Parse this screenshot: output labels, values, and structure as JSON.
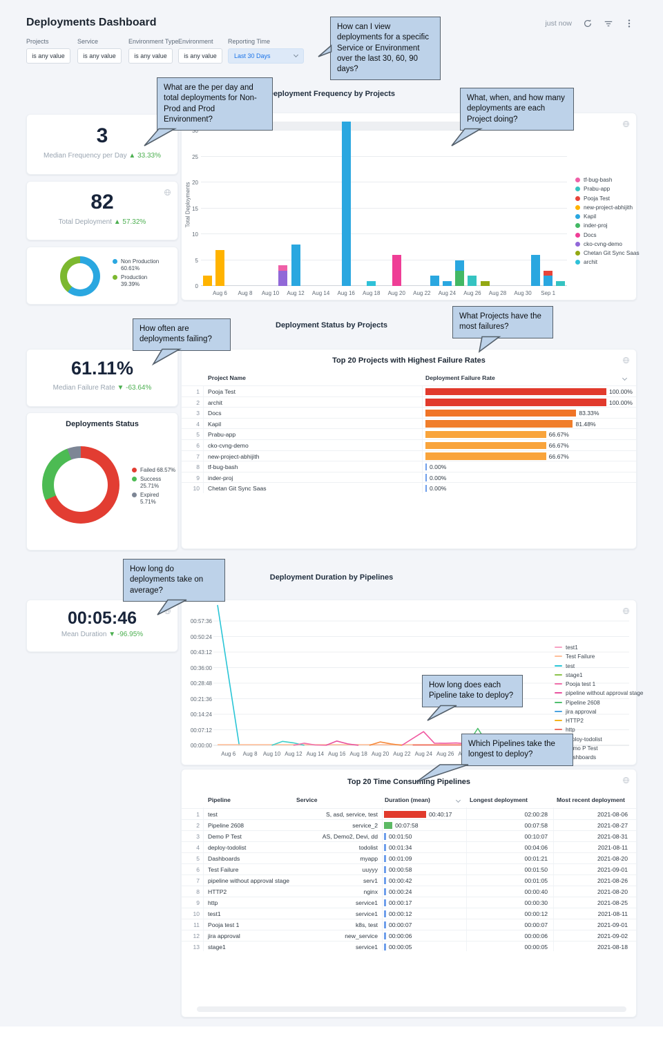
{
  "header": {
    "title": "Deployments Dashboard",
    "updated": "just now"
  },
  "filters": {
    "items": [
      {
        "label": "Projects",
        "value": "is any value"
      },
      {
        "label": "Service",
        "value": "is any value"
      },
      {
        "label": "Environment Type",
        "value": "is any value"
      },
      {
        "label": "Environment",
        "value": "is any value"
      }
    ],
    "reporting": {
      "label": "Reporting Time",
      "value": "Last 30 Days"
    }
  },
  "callouts": [
    {
      "text": "How can I view deployments for a specific Service or Environment over the last 30, 60, 90 days?"
    },
    {
      "text": "What are the per day and total deployments for Non-Prod and Prod Environment?"
    },
    {
      "text": "What, when, and how many deployments are each Project doing?"
    },
    {
      "text": "How often are deployments failing?"
    },
    {
      "text": "What Projects have the most failures?"
    },
    {
      "text": "How long do deployments take on average?"
    },
    {
      "text": "How long does each Pipeline take to deploy?"
    },
    {
      "text": "Which Pipelines take the longest to deploy?"
    }
  ],
  "kpis": {
    "median_frequency": {
      "value": "3",
      "label": "Median Frequency per Day",
      "arrow": "▲",
      "delta": "33.33%"
    },
    "total_deployment": {
      "value": "82",
      "label": "Total Deployment",
      "arrow": "▲",
      "delta": "57.32%"
    },
    "median_failure": {
      "value": "61.11%",
      "label": "Median Failure Rate",
      "arrow": "▼",
      "delta": "-63.64%"
    },
    "mean_duration": {
      "value": "00:05:46",
      "label": "Mean Duration",
      "arrow": "▼",
      "delta": "-96.95%"
    }
  },
  "sections": {
    "frequency": "Deployment Frequency by Projects",
    "status": "Deployment Status by Projects",
    "duration": "Deployment Duration by Pipelines"
  },
  "chart_data": {
    "env_split": {
      "type": "pie",
      "segments": [
        {
          "label": "Non Production",
          "pct": 60.61,
          "color": "#2aa7e0"
        },
        {
          "label": "Production",
          "pct": 39.39,
          "color": "#7cb82f"
        }
      ]
    },
    "frequency_by_projects": {
      "type": "bar",
      "stacked": true,
      "title": "Deployment Frequency by Projects",
      "ylabel": "Total Deployments",
      "ylim": [
        0,
        30
      ],
      "yticks": [
        0,
        5,
        10,
        15,
        20,
        25,
        30
      ],
      "xticks": [
        "Aug 6",
        "Aug 8",
        "Aug 10",
        "Aug 12",
        "Aug 14",
        "Aug 16",
        "Aug 18",
        "Aug 20",
        "Aug 22",
        "Aug 24",
        "Aug 26",
        "Aug 28",
        "Aug 30",
        "Sep 1"
      ],
      "tick_days": [
        1,
        3,
        5,
        7,
        9,
        11,
        13,
        15,
        17,
        19,
        21,
        23,
        25,
        27
      ],
      "legend": [
        {
          "name": "tf-bug-bash",
          "color": "#ef5fa7"
        },
        {
          "name": "Prabu-app",
          "color": "#35c3c1"
        },
        {
          "name": "Pooja Test",
          "color": "#e8443a"
        },
        {
          "name": "new-project-abhijith",
          "color": "#ffb300"
        },
        {
          "name": "Kapil",
          "color": "#2aa7e0"
        },
        {
          "name": "inder-proj",
          "color": "#43b864"
        },
        {
          "name": "Docs",
          "color": "#ef3e96"
        },
        {
          "name": "cko-cvng-demo",
          "color": "#9168d8"
        },
        {
          "name": "Chetan Git Sync Saas",
          "color": "#93a813"
        },
        {
          "name": "archit",
          "color": "#2fc1d8"
        }
      ],
      "bars": [
        {
          "date": "Aug 5",
          "day": 0,
          "segments": [
            {
              "project": "new-project-abhijith",
              "value": 2
            }
          ]
        },
        {
          "date": "Aug 6",
          "day": 1,
          "segments": [
            {
              "project": "new-project-abhijith",
              "value": 7
            }
          ]
        },
        {
          "date": "Aug 11",
          "day": 6,
          "segments": [
            {
              "project": "cko-cvng-demo",
              "value": 3
            },
            {
              "project": "tf-bug-bash",
              "value": 1
            }
          ]
        },
        {
          "date": "Aug 12",
          "day": 7,
          "segments": [
            {
              "project": "Kapil",
              "value": 8
            }
          ]
        },
        {
          "date": "Aug 16",
          "day": 11,
          "segments": [
            {
              "project": "Kapil",
              "value": 32
            }
          ]
        },
        {
          "date": "Aug 18",
          "day": 13,
          "segments": [
            {
              "project": "archit",
              "value": 1
            }
          ]
        },
        {
          "date": "Aug 20",
          "day": 15,
          "segments": [
            {
              "project": "Docs",
              "value": 6
            }
          ]
        },
        {
          "date": "Aug 23",
          "day": 18,
          "segments": [
            {
              "project": "Kapil",
              "value": 2
            }
          ]
        },
        {
          "date": "Aug 24",
          "day": 19,
          "segments": [
            {
              "project": "Kapil",
              "value": 1
            }
          ]
        },
        {
          "date": "Aug 25",
          "day": 20,
          "segments": [
            {
              "project": "inder-proj",
              "value": 3
            },
            {
              "project": "Kapil",
              "value": 2
            }
          ]
        },
        {
          "date": "Aug 26",
          "day": 21,
          "segments": [
            {
              "project": "Prabu-app",
              "value": 2
            }
          ]
        },
        {
          "date": "Aug 27",
          "day": 22,
          "segments": [
            {
              "project": "Chetan Git Sync Saas",
              "value": 1
            }
          ]
        },
        {
          "date": "Aug 31",
          "day": 26,
          "segments": [
            {
              "project": "Kapil",
              "value": 6
            }
          ]
        },
        {
          "date": "Sep 1",
          "day": 27,
          "segments": [
            {
              "project": "Kapil",
              "value": 2
            },
            {
              "project": "Pooja Test",
              "value": 1
            }
          ]
        },
        {
          "date": "Sep 2",
          "day": 28,
          "segments": [
            {
              "project": "Prabu-app",
              "value": 1
            }
          ]
        }
      ]
    },
    "status_donut": {
      "type": "pie",
      "title": "Deployments Status",
      "segments": [
        {
          "label": "Failed",
          "pct": 68.57,
          "color": "#e23d32"
        },
        {
          "label": "Success",
          "pct": 25.71,
          "color": "#4cbb53"
        },
        {
          "label": "Expired",
          "pct": 5.71,
          "color": "#7d8695"
        }
      ]
    },
    "failure_rates": {
      "type": "table-bar",
      "title": "Top 20 Projects with Highest Failure Rates",
      "columns": [
        "Project Name",
        "Deployment Failure Rate"
      ],
      "rows": [
        {
          "rank": 1,
          "name": "Pooja Test",
          "pct": 100.0,
          "label": "100.00%",
          "color": "#e13a2c"
        },
        {
          "rank": 2,
          "name": "archit",
          "pct": 100.0,
          "label": "100.00%",
          "color": "#e13a2c"
        },
        {
          "rank": 3,
          "name": "Docs",
          "pct": 83.33,
          "label": "83.33%",
          "color": "#f07426"
        },
        {
          "rank": 4,
          "name": "Kapil",
          "pct": 81.48,
          "label": "81.48%",
          "color": "#f07e2b"
        },
        {
          "rank": 5,
          "name": "Prabu-app",
          "pct": 66.67,
          "label": "66.67%",
          "color": "#f9a43b"
        },
        {
          "rank": 6,
          "name": "cko-cvng-demo",
          "pct": 66.67,
          "label": "66.67%",
          "color": "#f9a43b"
        },
        {
          "rank": 7,
          "name": "new-project-abhijith",
          "pct": 66.67,
          "label": "66.67%",
          "color": "#f9a43b"
        },
        {
          "rank": 8,
          "name": "tf-bug-bash",
          "pct": 0.0,
          "label": "0.00%",
          "color": "#6d9eeb"
        },
        {
          "rank": 9,
          "name": "inder-proj",
          "pct": 0.0,
          "label": "0.00%",
          "color": "#6d9eeb"
        },
        {
          "rank": 10,
          "name": "Chetan Git Sync Saas",
          "pct": 0.0,
          "label": "0.00%",
          "color": "#6d9eeb"
        }
      ]
    },
    "duration_by_pipelines": {
      "type": "line",
      "title": "Deployment Duration by Pipelines",
      "yticks": [
        "00:00:00",
        "00:07:12",
        "00:14:24",
        "00:21:36",
        "00:28:48",
        "00:36:00",
        "00:43:12",
        "00:50:24",
        "00:57:36"
      ],
      "ytick_seconds": [
        0,
        432,
        864,
        1296,
        1728,
        2160,
        2592,
        3024,
        3456
      ],
      "xticks": [
        "Aug 6",
        "Aug 8",
        "Aug 10",
        "Aug 12",
        "Aug 14",
        "Aug 16",
        "Aug 18",
        "Aug 20",
        "Aug 22",
        "Aug 24",
        "Aug 26",
        "Aug 28",
        "Aug 30",
        "Sep 1"
      ],
      "tick_days": [
        1,
        3,
        5,
        7,
        9,
        11,
        13,
        15,
        17,
        19,
        21,
        23,
        25,
        27
      ],
      "legend": [
        {
          "name": "test1",
          "color": "#f8a1c4"
        },
        {
          "name": "Test Failure",
          "color": "#ffbe99"
        },
        {
          "name": "test",
          "color": "#29c5d6"
        },
        {
          "name": "stage1",
          "color": "#8bc34a"
        },
        {
          "name": "Pooja test 1",
          "color": "#f06eaa"
        },
        {
          "name": "pipeline without approval stage",
          "color": "#e8519e"
        },
        {
          "name": "Pipeline 2608",
          "color": "#4fbf6e"
        },
        {
          "name": "jira approval",
          "color": "#4aa3e0"
        },
        {
          "name": "HTTP2",
          "color": "#f5b31a"
        },
        {
          "name": "http",
          "color": "#ef6e62"
        },
        {
          "name": "deploy-todolist",
          "color": "#3fd0c9"
        },
        {
          "name": "Demo P Test",
          "color": "#f0569f"
        },
        {
          "name": "Dashboards",
          "color": "#f5893b"
        }
      ],
      "series": [
        {
          "name": "test",
          "color": "#29c5d6",
          "points": [
            [
              0,
              3900
            ],
            [
              2,
              0
            ]
          ]
        },
        {
          "name": "Test Failure",
          "color": "#ffbe99",
          "points": [
            [
              0,
              18
            ],
            [
              28,
              18
            ]
          ]
        },
        {
          "name": "deploy-todolist",
          "color": "#3fd0c9",
          "points": [
            [
              5,
              0
            ],
            [
              6,
              110
            ],
            [
              7,
              70
            ],
            [
              8,
              0
            ]
          ]
        },
        {
          "name": "Pooja test 1",
          "color": "#f06eaa",
          "points": [
            [
              7,
              0
            ],
            [
              8,
              60
            ],
            [
              9,
              10
            ],
            [
              10,
              0
            ]
          ]
        },
        {
          "name": "pipeline without approval stage",
          "color": "#e8519e",
          "points": [
            [
              10,
              0
            ],
            [
              11,
              120
            ],
            [
              12,
              40
            ],
            [
              13,
              0
            ]
          ]
        },
        {
          "name": "Dashboards",
          "color": "#f5893b",
          "points": [
            [
              14,
              0
            ],
            [
              15,
              95
            ],
            [
              16,
              40
            ],
            [
              17,
              0
            ]
          ]
        },
        {
          "name": "Demo P Test",
          "color": "#f0569f",
          "points": [
            [
              17,
              0
            ],
            [
              19,
              380
            ],
            [
              20,
              60
            ],
            [
              21,
              55
            ],
            [
              22,
              65
            ],
            [
              23,
              45
            ],
            [
              25,
              40
            ],
            [
              26,
              30
            ]
          ]
        },
        {
          "name": "Pipeline 2608",
          "color": "#4fbf6e",
          "points": [
            [
              23,
              0
            ],
            [
              24,
              470
            ],
            [
              25,
              0
            ]
          ]
        },
        {
          "name": "http",
          "color": "#ef6e62",
          "points": [
            [
              18,
              8
            ],
            [
              28,
              8
            ]
          ]
        }
      ]
    },
    "time_consuming": {
      "type": "table",
      "title": "Top 20 Time Consuming Pipelines",
      "columns": [
        "Pipeline",
        "Service",
        "Duration (mean)",
        "Longest deployment",
        "Most recent deployment"
      ],
      "max_seconds": 2417,
      "rows": [
        {
          "rank": 1,
          "pipeline": "test",
          "service": "S, asd, service, test",
          "duration": "00:40:17",
          "sec": 2417,
          "bar_color": "#e13a2c",
          "longest": "02:00:28",
          "recent": "2021-08-06"
        },
        {
          "rank": 2,
          "pipeline": "Pipeline 2608",
          "service": "service_2",
          "duration": "00:07:58",
          "sec": 478,
          "bar_color": "#5cb964",
          "longest": "00:07:58",
          "recent": "2021-08-27"
        },
        {
          "rank": 3,
          "pipeline": "Demo P Test",
          "service": "AS, Demo2, Devi, dd",
          "duration": "00:01:50",
          "sec": 110,
          "bar_color": "#6d9eeb",
          "longest": "00:10:07",
          "recent": "2021-08-31"
        },
        {
          "rank": 4,
          "pipeline": "deploy-todolist",
          "service": "todolist",
          "duration": "00:01:34",
          "sec": 94,
          "bar_color": "#6d9eeb",
          "longest": "00:04:06",
          "recent": "2021-08-11"
        },
        {
          "rank": 5,
          "pipeline": "Dashboards",
          "service": "myapp",
          "duration": "00:01:09",
          "sec": 69,
          "bar_color": "#6d9eeb",
          "longest": "00:01:21",
          "recent": "2021-08-20"
        },
        {
          "rank": 6,
          "pipeline": "Test Failure",
          "service": "uuyyy",
          "duration": "00:00:58",
          "sec": 58,
          "bar_color": "#6d9eeb",
          "longest": "00:01:50",
          "recent": "2021-09-01"
        },
        {
          "rank": 7,
          "pipeline": "pipeline without approval stage",
          "service": "serv1",
          "duration": "00:00:42",
          "sec": 42,
          "bar_color": "#6d9eeb",
          "longest": "00:01:05",
          "recent": "2021-08-26"
        },
        {
          "rank": 8,
          "pipeline": "HTTP2",
          "service": "nginx",
          "duration": "00:00:24",
          "sec": 24,
          "bar_color": "#6d9eeb",
          "longest": "00:00:40",
          "recent": "2021-08-20"
        },
        {
          "rank": 9,
          "pipeline": "http",
          "service": "service1",
          "duration": "00:00:17",
          "sec": 17,
          "bar_color": "#6d9eeb",
          "longest": "00:00:30",
          "recent": "2021-08-25"
        },
        {
          "rank": 10,
          "pipeline": "test1",
          "service": "service1",
          "duration": "00:00:12",
          "sec": 12,
          "bar_color": "#6d9eeb",
          "longest": "00:00:12",
          "recent": "2021-08-11"
        },
        {
          "rank": 11,
          "pipeline": "Pooja test 1",
          "service": "k8s, test",
          "duration": "00:00:07",
          "sec": 7,
          "bar_color": "#6d9eeb",
          "longest": "00:00:07",
          "recent": "2021-09-01"
        },
        {
          "rank": 12,
          "pipeline": "jira approval",
          "service": "new_service",
          "duration": "00:00:06",
          "sec": 6,
          "bar_color": "#6d9eeb",
          "longest": "00:00:06",
          "recent": "2021-09-02"
        },
        {
          "rank": 13,
          "pipeline": "stage1",
          "service": "service1",
          "duration": "00:00:05",
          "sec": 5,
          "bar_color": "#6d9eeb",
          "longest": "00:00:05",
          "recent": "2021-08-18"
        }
      ]
    }
  }
}
